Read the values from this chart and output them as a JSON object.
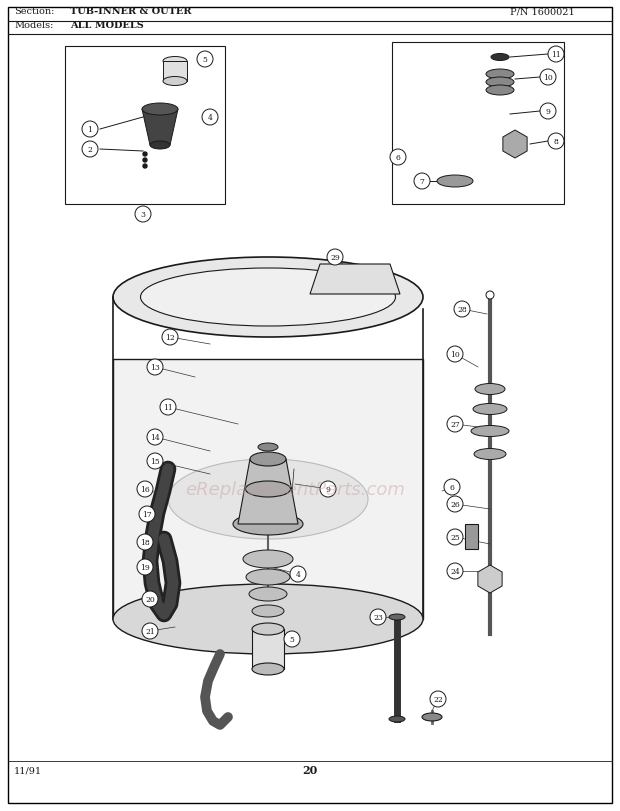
{
  "title_section": "Section:",
  "title_section_value": "TUB-INNER & OUTER",
  "title_pn": "P/N 1600021",
  "title_models": "Models:",
  "title_models_value": "ALL MODELS",
  "page_number": "20",
  "date": "11/91",
  "bg_color": "#ffffff",
  "border_color": "#000000",
  "text_color": "#1a1a1a",
  "watermark_text": "eReplacementParts.com",
  "watermark_color": "#c8a0a0",
  "watermark_alpha": 0.45,
  "fig_width": 6.2,
  "fig_height": 8.12
}
